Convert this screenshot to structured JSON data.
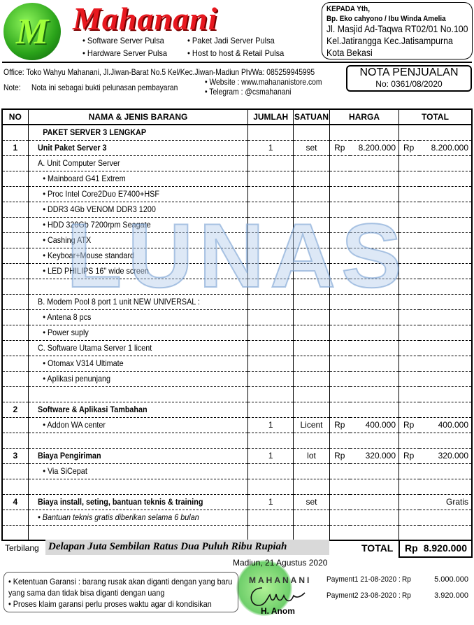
{
  "header": {
    "logo_letter": "M",
    "brand": "Mahanani",
    "services": [
      "• Software  Server Pulsa",
      "• Paket Jadi Server Pulsa",
      "• Hardware  Server Pulsa",
      "• Host to host & Retail  Pulsa"
    ],
    "office": "Office: Toko Wahyu Mahanani, Jl.Jiwan-Barat No.5 Kel/Kec.Jiwan-Madiun Ph/Wa: 085259945995",
    "note_label": "Note:",
    "note": "Nota ini sebagai bukti pelunasan pembayaran",
    "website": "• Website  : www.mahananistore.com",
    "telegram": "• Telegram : @csmahanani"
  },
  "recipient": {
    "label": "KEPADA Yth,",
    "name": "Bp. Eko cahyono  / Ibu Winda Amelia",
    "addr1": "Jl. Masjid Ad-Taqwa RT02/01 No.100",
    "addr2": "Kel.Jatirangga Kec.Jatisampurna",
    "addr3": "Kota Bekasi"
  },
  "nota": {
    "title": "NOTA PENJUALAN",
    "number": "No: 0361/08/2020"
  },
  "table": {
    "headers": [
      "NO",
      "NAMA & JENIS BARANG",
      "JUMLAH",
      "SATUAN",
      "HARGA",
      "TOTAL"
    ],
    "rows": [
      {
        "no": "",
        "name": "PAKET SERVER 3 LENGKAP",
        "style": "bold",
        "indent": 2
      },
      {
        "no": "1",
        "name": "Unit Paket Server 3",
        "style": "bold",
        "indent": 1,
        "qty": "1",
        "unit": "set",
        "price_cur": "Rp",
        "price": "8.200.000",
        "total_cur": "Rp",
        "total": "8.200.000"
      },
      {
        "no": "",
        "name": "A. Unit Computer Server",
        "indent": 1
      },
      {
        "no": "",
        "name": "• Mainboard G41 Extrem",
        "indent": 2
      },
      {
        "no": "",
        "name": "• Proc Intel Core2Duo E7400+HSF",
        "indent": 2
      },
      {
        "no": "",
        "name": "• DDR3 4Gb VENOM DDR3 1200",
        "indent": 2
      },
      {
        "no": "",
        "name": "• HDD 320Gb 7200rpm Seagate",
        "indent": 2
      },
      {
        "no": "",
        "name": "• Cashing ATX",
        "indent": 2
      },
      {
        "no": "",
        "name": "• Keyboar+Mouse standard",
        "indent": 2
      },
      {
        "no": "",
        "name": "• LED PHILIPS 16\" wide screen",
        "indent": 2
      },
      {
        "no": "",
        "name": ""
      },
      {
        "no": "",
        "name": "B. Modem Pool 8 port 1 unit NEW UNIVERSAL :",
        "indent": 1
      },
      {
        "no": "",
        "name": "• Antena 8 pcs",
        "indent": 2
      },
      {
        "no": "",
        "name": "• Power suply",
        "indent": 2
      },
      {
        "no": "",
        "name": "C. Software Utama Server 1 licent",
        "indent": 1
      },
      {
        "no": "",
        "name": "• Otomax V314 Ultimate",
        "indent": 2
      },
      {
        "no": "",
        "name": "• Aplikasi penunjang",
        "indent": 2
      },
      {
        "no": "",
        "name": ""
      },
      {
        "no": "2",
        "name": "Software & Aplikasi Tambahan",
        "style": "bold",
        "indent": 1
      },
      {
        "no": "",
        "name": "• Addon WA center",
        "indent": 2,
        "qty": "1",
        "unit": "Licent",
        "price_cur": "Rp",
        "price": "400.000",
        "total_cur": "Rp",
        "total": "400.000"
      },
      {
        "no": "",
        "name": ""
      },
      {
        "no": "3",
        "name": "Biaya Pengiriman",
        "style": "bold",
        "indent": 1,
        "qty": "1",
        "unit": "lot",
        "price_cur": "Rp",
        "price": "320.000",
        "total_cur": "Rp",
        "total": "320.000"
      },
      {
        "no": "",
        "name": "• Via SiCepat",
        "indent": 2
      },
      {
        "no": "",
        "name": ""
      },
      {
        "no": "4",
        "name": "Biaya install, seting, bantuan teknis & training",
        "style": "bold",
        "indent": 1,
        "qty": "1",
        "unit": "set",
        "total": "Gratis"
      },
      {
        "no": "",
        "name": "•  Bantuan teknis gratis diberikan selama 6 bulan",
        "style": "italic",
        "indent": 1
      },
      {
        "no": "",
        "name": ""
      }
    ]
  },
  "watermark": "LUNAS",
  "summary": {
    "terbilang_label": "Terbilang",
    "terbilang": "Delapan Juta Sembilan Ratus Dua Puluh Ribu Rupiah",
    "total_label": "TOTAL",
    "total_cur": "Rp",
    "total": "8.920.000"
  },
  "footer": {
    "place_date": "Madiun, 21 Agustus  2020",
    "garansi1": "• Ketentuan  Garansi : barang rusak akan diganti dengan yang baru yang sama dan tidak bisa diganti dengan uang",
    "garansi2": "• Proses klaim garansi perlu proses waktu agar di kondisikan",
    "stamp_text": "MAHANANI",
    "signer": "H. Anom",
    "payments": [
      {
        "label": "Payment1 21-08-2020 :",
        "cur": "Rp",
        "amount": "5.000.000"
      },
      {
        "label": "Payment2 23-08-2020 :",
        "cur": "Rp",
        "amount": "3.920.000"
      }
    ]
  }
}
